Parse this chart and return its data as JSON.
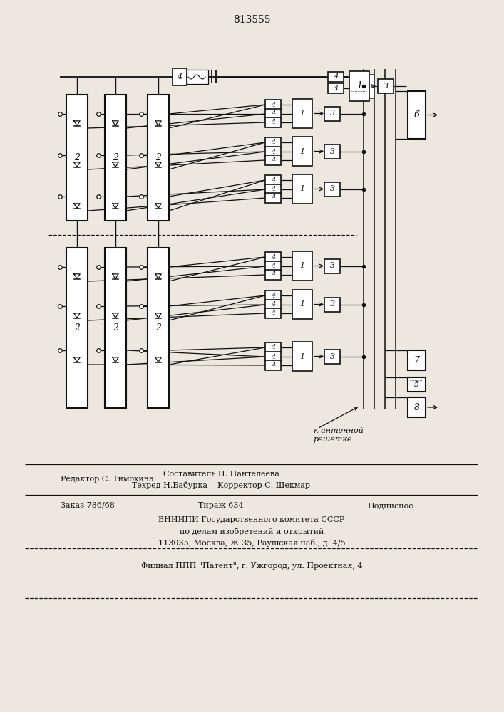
{
  "title": "813555",
  "bg_color": "#ece8e0",
  "lc": "#111111",
  "bottom_texts": [
    [
      85,
      668,
      "left",
      "Редактор С. Тимохина"
    ],
    [
      310,
      661,
      "center",
      "Составитель Н. Пантелеева"
    ],
    [
      310,
      676,
      "center",
      "Техред Н.Бабурка    Корректор С. Шекмар"
    ],
    [
      85,
      705,
      "left",
      "Заказ 786/68"
    ],
    [
      310,
      705,
      "center",
      "Тираж 634"
    ],
    [
      580,
      705,
      "right",
      "Подписное"
    ],
    [
      353,
      725,
      "center",
      "ВНИИПИ Государственного комитета СССР"
    ],
    [
      353,
      741,
      "center",
      "по делам изобретений и открытий"
    ],
    [
      353,
      757,
      "center",
      "113035, Москва, Ж-35, Раушская наб., д. 4/5"
    ],
    [
      353,
      790,
      "center",
      "Филиал ППП \"Патент\", г. Ужгород, ул. Проектная, 4"
    ]
  ],
  "ant_text": "к антенной\nрешетке"
}
